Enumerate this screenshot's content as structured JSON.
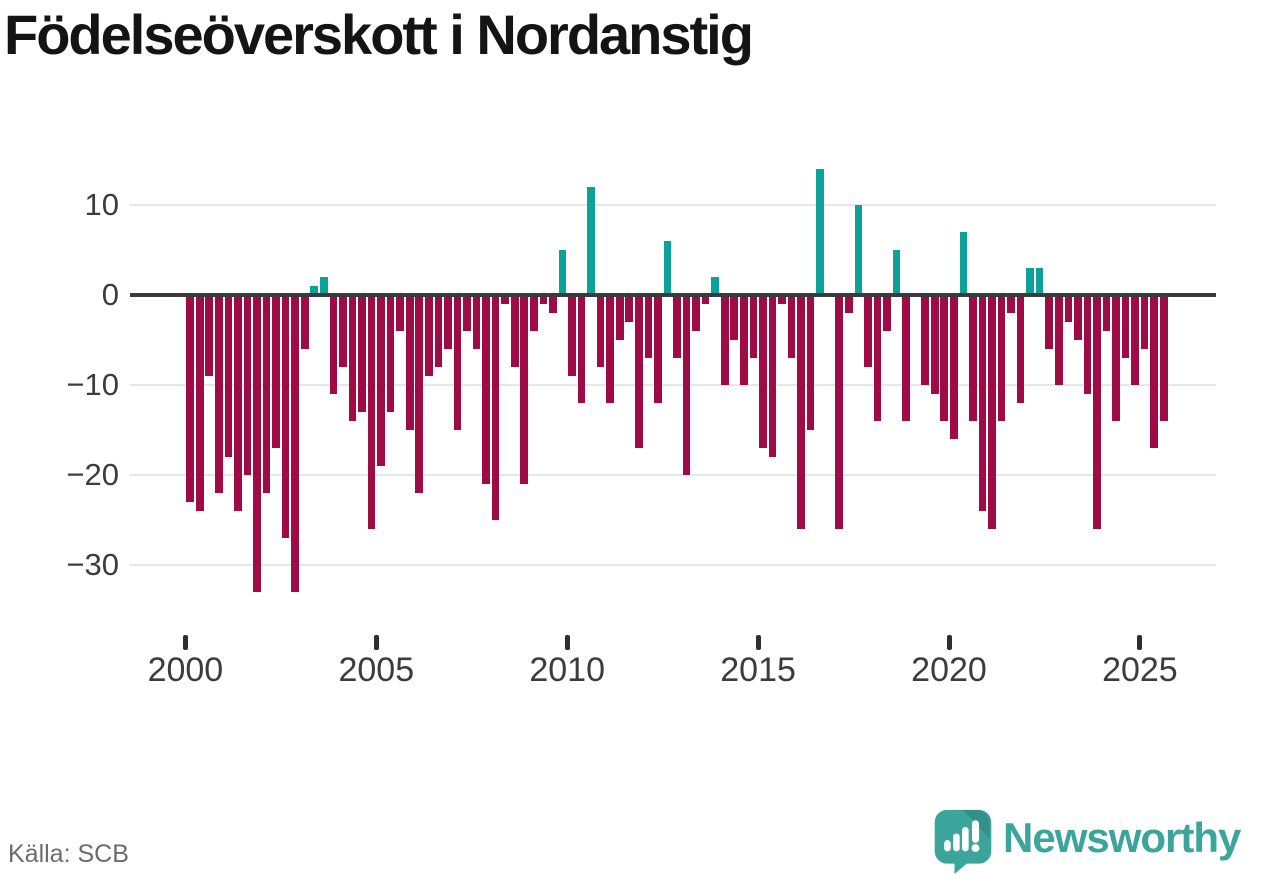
{
  "title": "Födelseöverskott i Nordanstig",
  "source": "Källa: SCB",
  "logo": {
    "name": "Newsworthy"
  },
  "chart_data": {
    "type": "bar",
    "title": "Födelseöverskott i Nordanstig",
    "xlabel": "",
    "ylabel": "",
    "x_unit": "quarter",
    "start": "2000 Q1",
    "end": "2025 Q3",
    "grid": "horizontal",
    "zero_line": true,
    "legend": "none",
    "ylim": [
      -35,
      15
    ],
    "colors": {
      "positive": "#0ca29a",
      "negative": "#9e0b45"
    },
    "y_ticks": [
      {
        "label": "10",
        "value": 10
      },
      {
        "label": "0",
        "value": 0
      },
      {
        "label": "−10",
        "value": -10
      },
      {
        "label": "−20",
        "value": -20
      },
      {
        "label": "−30",
        "value": -30
      }
    ],
    "x_ticks": [
      {
        "label": "2000",
        "value": 2000
      },
      {
        "label": "2005",
        "value": 2005
      },
      {
        "label": "2010",
        "value": 2010
      },
      {
        "label": "2015",
        "value": 2015
      },
      {
        "label": "2020",
        "value": 2020
      },
      {
        "label": "2025",
        "value": 2025
      }
    ],
    "categories": [
      "2000 Q1",
      "2000 Q2",
      "2000 Q3",
      "2000 Q4",
      "2001 Q1",
      "2001 Q2",
      "2001 Q3",
      "2001 Q4",
      "2002 Q1",
      "2002 Q2",
      "2002 Q3",
      "2002 Q4",
      "2003 Q1",
      "2003 Q2",
      "2003 Q3",
      "2003 Q4",
      "2004 Q1",
      "2004 Q2",
      "2004 Q3",
      "2004 Q4",
      "2005 Q1",
      "2005 Q2",
      "2005 Q3",
      "2005 Q4",
      "2006 Q1",
      "2006 Q2",
      "2006 Q3",
      "2006 Q4",
      "2007 Q1",
      "2007 Q2",
      "2007 Q3",
      "2007 Q4",
      "2008 Q1",
      "2008 Q2",
      "2008 Q3",
      "2008 Q4",
      "2009 Q1",
      "2009 Q2",
      "2009 Q3",
      "2009 Q4",
      "2010 Q1",
      "2010 Q2",
      "2010 Q3",
      "2010 Q4",
      "2011 Q1",
      "2011 Q2",
      "2011 Q3",
      "2011 Q4",
      "2012 Q1",
      "2012 Q2",
      "2012 Q3",
      "2012 Q4",
      "2013 Q1",
      "2013 Q2",
      "2013 Q3",
      "2013 Q4",
      "2014 Q1",
      "2014 Q2",
      "2014 Q3",
      "2014 Q4",
      "2015 Q1",
      "2015 Q2",
      "2015 Q3",
      "2015 Q4",
      "2016 Q1",
      "2016 Q2",
      "2016 Q3",
      "2016 Q4",
      "2017 Q1",
      "2017 Q2",
      "2017 Q3",
      "2017 Q4",
      "2018 Q1",
      "2018 Q2",
      "2018 Q3",
      "2018 Q4",
      "2019 Q1",
      "2019 Q2",
      "2019 Q3",
      "2019 Q4",
      "2020 Q1",
      "2020 Q2",
      "2020 Q3",
      "2020 Q4",
      "2021 Q1",
      "2021 Q2",
      "2021 Q3",
      "2021 Q4",
      "2022 Q1",
      "2022 Q2",
      "2022 Q3",
      "2022 Q4",
      "2023 Q1",
      "2023 Q2",
      "2023 Q3",
      "2023 Q4",
      "2024 Q1",
      "2024 Q2",
      "2024 Q3",
      "2024 Q4",
      "2025 Q1",
      "2025 Q2",
      "2025 Q3"
    ],
    "values": [
      -23,
      -24,
      -9,
      -22,
      -18,
      -24,
      -20,
      -33,
      -22,
      -17,
      -27,
      -33,
      -6,
      1,
      2,
      -11,
      -8,
      -14,
      -13,
      -26,
      -19,
      -13,
      -4,
      -15,
      -22,
      -9,
      -8,
      -6,
      -15,
      -4,
      -6,
      -21,
      -25,
      -1,
      -8,
      -21,
      -4,
      -1,
      -2,
      5,
      -9,
      -12,
      12,
      -8,
      -12,
      -5,
      -3,
      -17,
      -7,
      -12,
      6,
      -7,
      -20,
      -4,
      -1,
      2,
      -10,
      -5,
      -10,
      -7,
      -17,
      -18,
      -1,
      -7,
      -26,
      -15,
      14,
      0,
      -26,
      -2,
      10,
      -8,
      -14,
      -4,
      5,
      -14,
      0,
      -10,
      -11,
      -14,
      -16,
      7,
      -14,
      -24,
      -26,
      -14,
      -2,
      -12,
      3,
      3,
      -6,
      -10,
      -3,
      -5,
      -11,
      -26,
      -4,
      -14,
      -7,
      -10,
      -6,
      -17,
      -14
    ]
  }
}
